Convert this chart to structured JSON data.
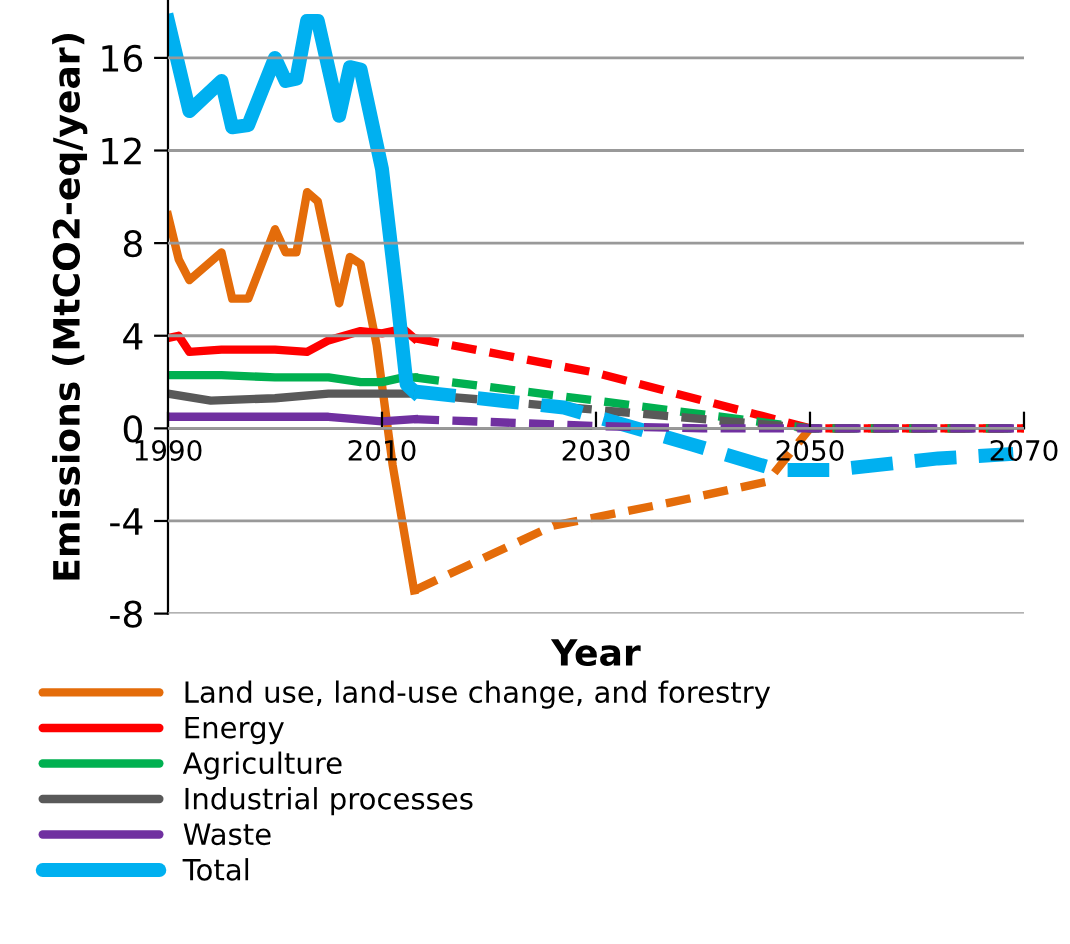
{
  "chart_data": {
    "type": "line",
    "xlabel": "Year",
    "ylabel": "Emissions (MtCO2-eq/year)",
    "xlim": [
      1990,
      2070
    ],
    "xticks": [
      1990,
      2010,
      2030,
      2050,
      2070
    ],
    "ylim": [
      -8,
      18.5
    ],
    "yticks": [
      -8,
      -4,
      0,
      4,
      8,
      12,
      16
    ],
    "grid": "y",
    "legend": "bottom",
    "marker": "none",
    "series": [
      {
        "name": "Land use, land-use change, and forestry",
        "color": "#e46c0a",
        "line_style": "solid",
        "x": [
          1990,
          1991,
          1992,
          1995,
          1996,
          1997.5,
          2000,
          2001,
          2002,
          2003,
          2004,
          2006,
          2007,
          2008,
          2009.5,
          2011,
          2013
        ],
        "values": [
          9.2,
          7.3,
          6.4,
          7.6,
          5.6,
          5.6,
          8.6,
          7.6,
          7.6,
          10.2,
          9.8,
          5.4,
          7.4,
          7.1,
          3.6,
          -1.6,
          -7.0
        ]
      },
      {
        "name": "Energy",
        "color": "#ff0000",
        "line_style": "solid",
        "x": [
          1990,
          1991,
          1992,
          1995,
          2000,
          2003,
          2005,
          2008,
          2010,
          2012,
          2013
        ],
        "values": [
          3.9,
          4.0,
          3.3,
          3.4,
          3.4,
          3.3,
          3.8,
          4.2,
          4.1,
          4.3,
          3.9
        ]
      },
      {
        "name": "Agriculture",
        "color": "#00b050",
        "line_style": "solid",
        "x": [
          1990,
          1995,
          2000,
          2005,
          2008,
          2010,
          2012,
          2013
        ],
        "values": [
          2.3,
          2.3,
          2.2,
          2.2,
          2.0,
          2.0,
          2.2,
          2.2
        ]
      },
      {
        "name": "Industrial processes",
        "color": "#595959",
        "line_style": "solid",
        "x": [
          1990,
          1994,
          2000,
          2005,
          2010,
          2013
        ],
        "values": [
          1.5,
          1.2,
          1.3,
          1.5,
          1.5,
          1.5
        ]
      },
      {
        "name": "Waste",
        "color": "#7030a0",
        "line_style": "solid",
        "x": [
          1990,
          2000,
          2005,
          2010,
          2013
        ],
        "values": [
          0.5,
          0.5,
          0.5,
          0.3,
          0.4
        ]
      },
      {
        "name": "Total",
        "color": "#00b0f0",
        "line_style": "solid",
        "x": [
          1990,
          1992,
          1995,
          1996,
          1997.5,
          2000,
          2001,
          2002,
          2003,
          2004,
          2006,
          2007,
          2008,
          2010,
          2011.4,
          2012.3,
          2013
        ],
        "values": [
          17.6,
          13.7,
          15.0,
          13.0,
          13.1,
          16.0,
          15.0,
          15.1,
          17.6,
          17.6,
          13.5,
          15.6,
          15.5,
          11.2,
          5.7,
          1.9,
          1.6
        ]
      },
      {
        "color": "#e46c0a",
        "line_style": "dashed",
        "x": [
          2013,
          2026,
          2037,
          2046,
          2050,
          2070
        ],
        "values": [
          -7.0,
          -4.2,
          -3.2,
          -2.3,
          0,
          0
        ]
      },
      {
        "color": "#ff0000",
        "line_style": "dashed",
        "x": [
          2013,
          2030,
          2045,
          2050,
          2070
        ],
        "values": [
          3.9,
          2.4,
          0.6,
          0,
          0
        ]
      },
      {
        "color": "#00b050",
        "line_style": "dashed",
        "x": [
          2013,
          2030,
          2050,
          2070
        ],
        "values": [
          2.2,
          1.2,
          0,
          0
        ]
      },
      {
        "color": "#595959",
        "line_style": "dashed",
        "x": [
          2013,
          2030,
          2050,
          2070
        ],
        "values": [
          1.5,
          0.8,
          0,
          0
        ]
      },
      {
        "color": "#00b0f0",
        "line_style": "dashed",
        "x": [
          2013,
          2027,
          2039,
          2047,
          2052,
          2062,
          2069
        ],
        "values": [
          1.6,
          0.9,
          -0.7,
          -1.8,
          -1.8,
          -1.3,
          -1.1
        ]
      },
      {
        "color": "#7030a0",
        "line_style": "dashed",
        "x": [
          2013,
          2030,
          2040,
          2070
        ],
        "values": [
          0.4,
          0.1,
          0,
          0
        ]
      }
    ]
  }
}
